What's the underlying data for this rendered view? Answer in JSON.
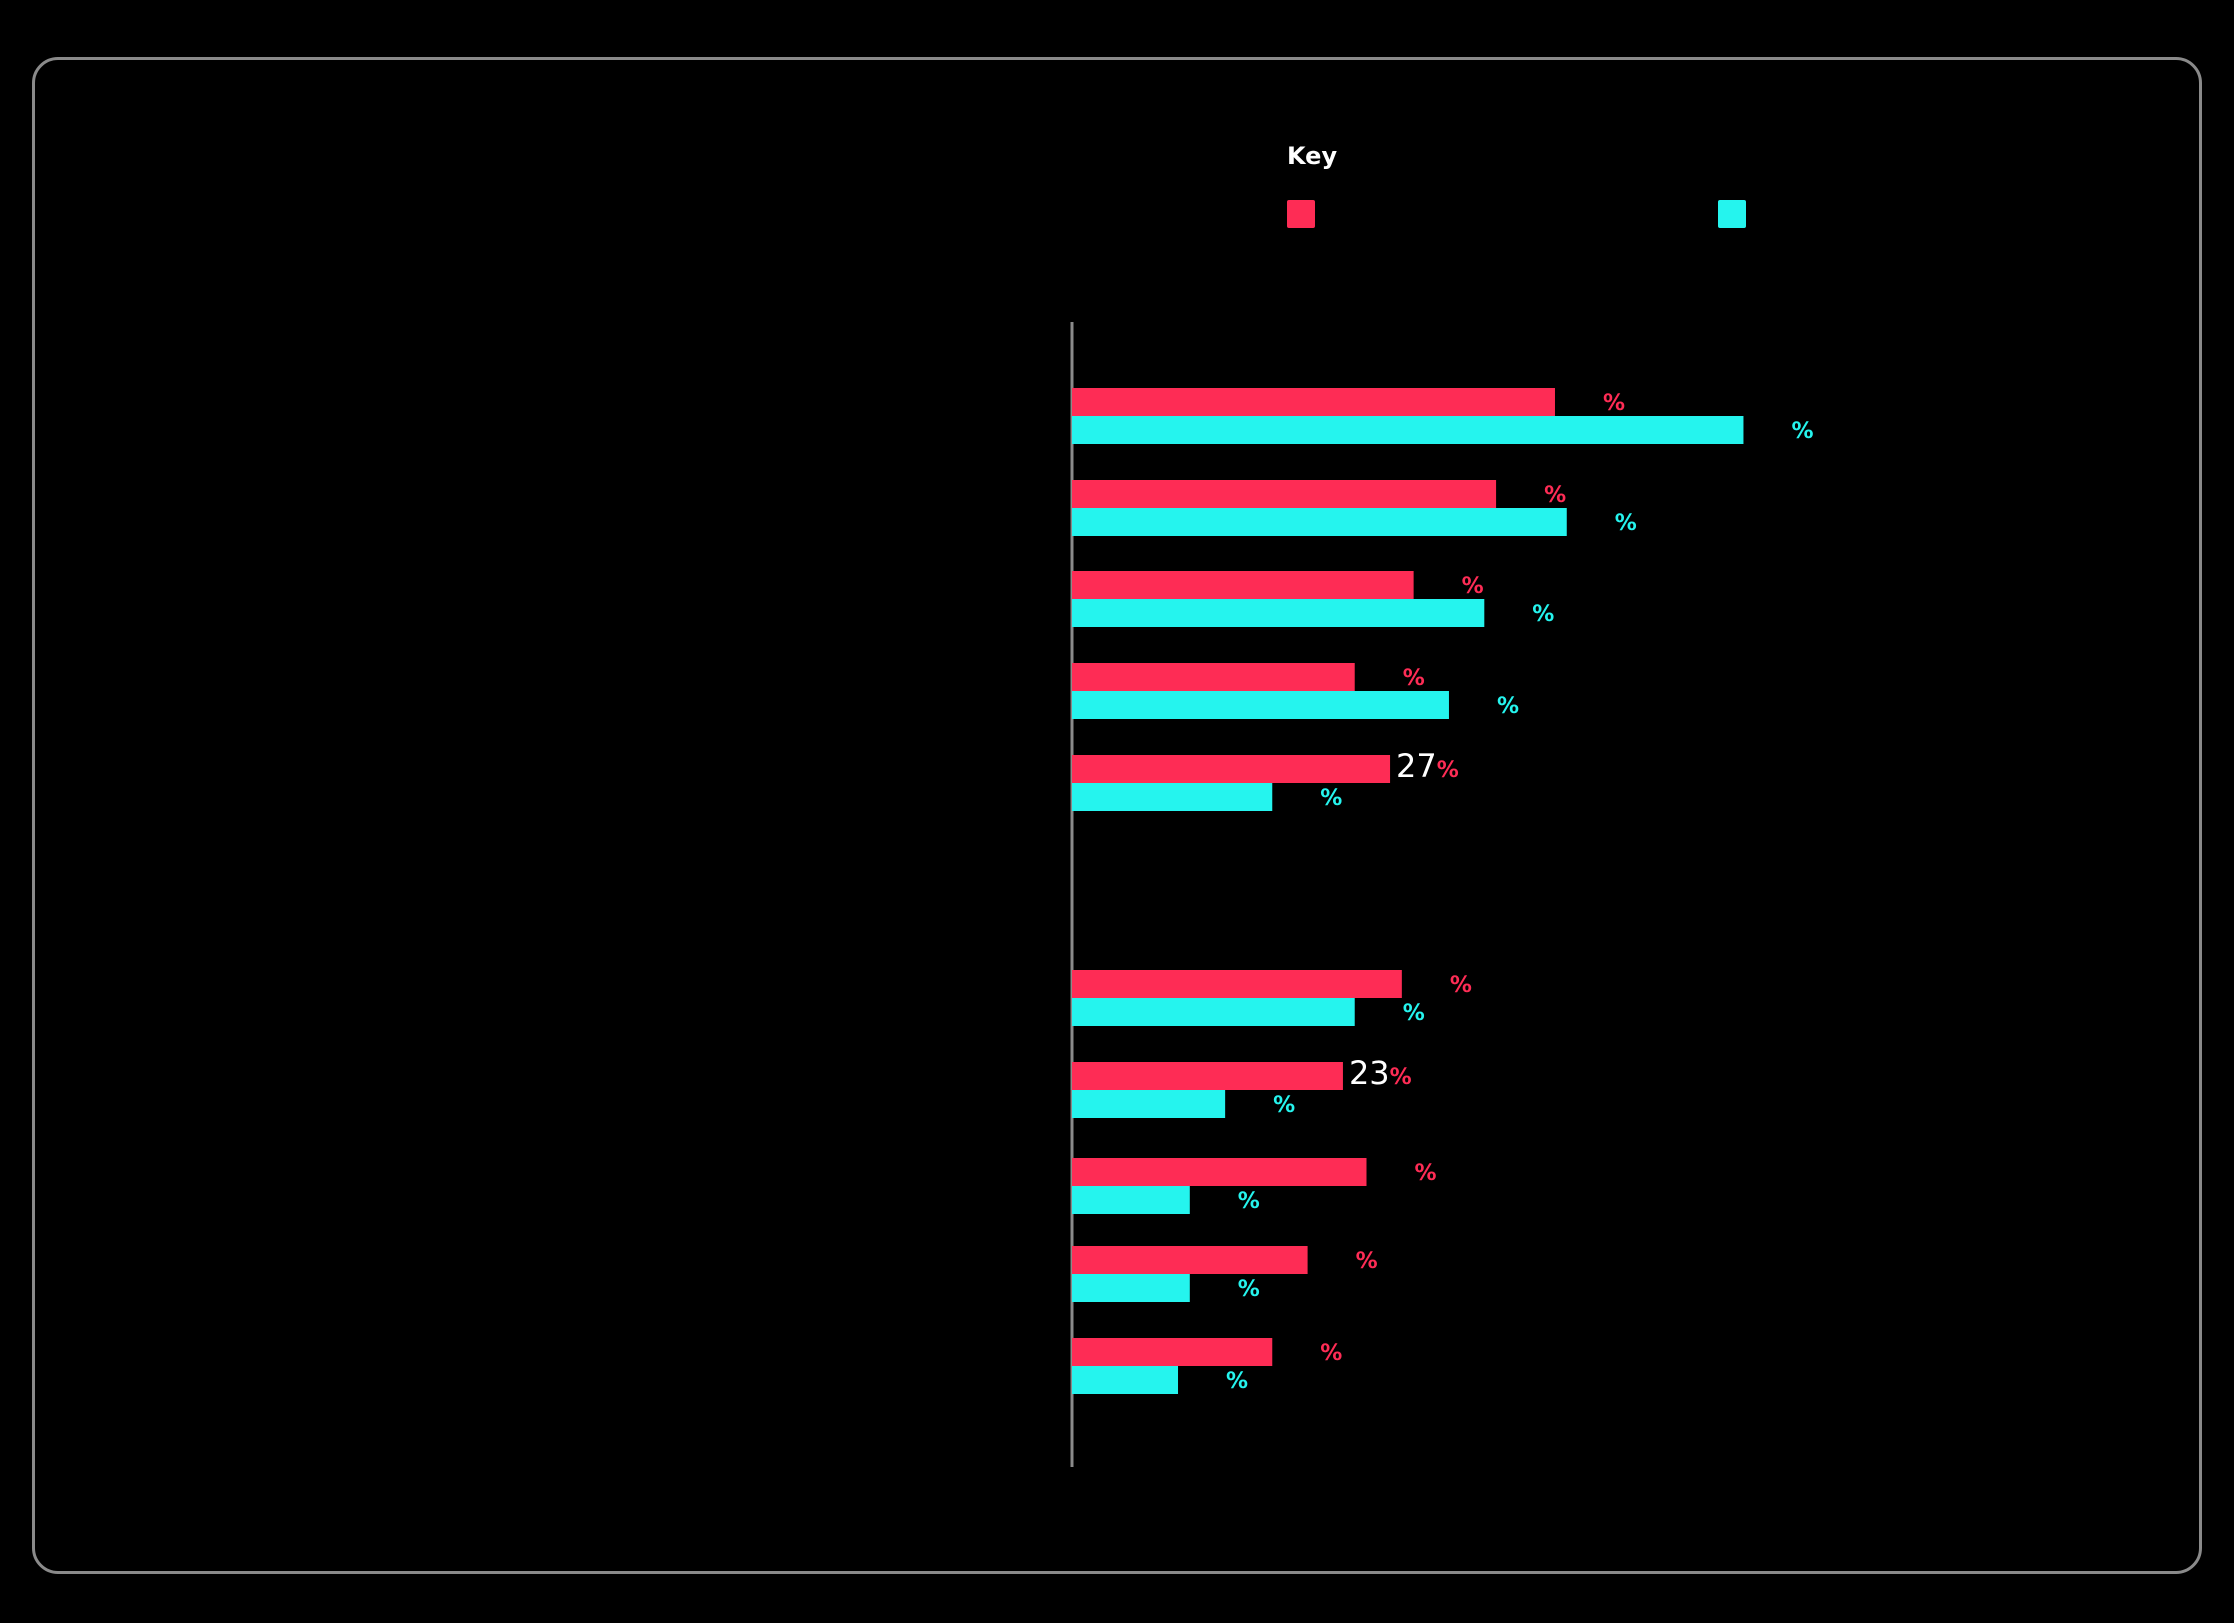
{
  "legend": {
    "title": "Key",
    "series": [
      {
        "color": "#fe2c55"
      },
      {
        "color": "#25f4ee"
      }
    ]
  },
  "chart_data": {
    "type": "bar",
    "orientation": "horizontal",
    "legend_position": "top-right",
    "grid": false,
    "xlim": [
      0,
      100
    ],
    "unit_label": "%",
    "series": [
      {
        "color": "#fe2c55",
        "values": [
          41,
          36,
          29,
          24,
          27,
          28,
          23,
          25,
          20,
          17
        ]
      },
      {
        "color": "#25f4ee",
        "values": [
          57,
          42,
          35,
          32,
          17,
          24,
          13,
          10,
          10,
          9
        ]
      }
    ],
    "value_labels": [
      [
        "",
        ""
      ],
      [
        "",
        ""
      ],
      [
        "",
        ""
      ],
      [
        "",
        ""
      ],
      [
        "27",
        ""
      ],
      [
        "",
        ""
      ],
      [
        "23",
        ""
      ],
      [
        "",
        ""
      ],
      [
        "",
        ""
      ],
      [
        "",
        ""
      ]
    ]
  }
}
